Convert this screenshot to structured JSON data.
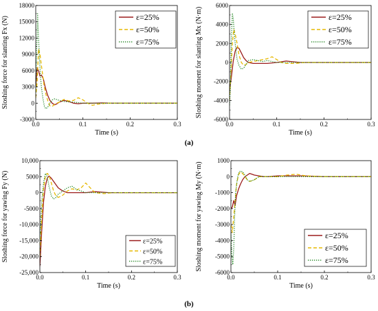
{
  "panel_labels": [
    "(a)",
    "(b)"
  ],
  "colors": {
    "e25": "#9b1b1b",
    "e50": "#e6b800",
    "e75": "#2e8b2e"
  },
  "chart_data": [
    {
      "type": "line",
      "xlabel": "Time (s)",
      "ylabel": "Sloshing force for slanting Fx (N)",
      "xlim": [
        0,
        0.3
      ],
      "ylim": [
        -3000,
        18000
      ],
      "xticks": [
        0,
        0.1,
        0.2,
        0.3
      ],
      "xtick_labels": [
        "0.0",
        "0.1",
        "0.2",
        "0.3"
      ],
      "yticks": [
        -3000,
        0,
        3000,
        6000,
        9000,
        12000,
        15000,
        18000
      ],
      "ytick_labels": [
        "-3000",
        "0",
        "3000",
        "6000",
        "9000",
        "12000",
        "15000",
        "18000"
      ],
      "legend_position": "top-right",
      "series": [
        {
          "name": "ε=25%",
          "color": "#9b1b1b",
          "dash": "solid",
          "x": [
            0,
            0.003,
            0.006,
            0.009,
            0.012,
            0.016,
            0.02,
            0.025,
            0.03,
            0.035,
            0.04,
            0.045,
            0.05,
            0.06,
            0.07,
            0.08,
            0.09,
            0.1,
            0.12,
            0.14,
            0.16,
            0.2,
            0.25,
            0.3
          ],
          "y": [
            3000,
            6500,
            6000,
            5000,
            5200,
            4500,
            3000,
            1500,
            500,
            0,
            -300,
            -100,
            200,
            500,
            300,
            0,
            -100,
            0,
            0,
            50,
            0,
            0,
            0,
            0
          ]
        },
        {
          "name": "ε=50%",
          "color": "#e6b800",
          "dash": "dashed",
          "x": [
            0,
            0.003,
            0.006,
            0.009,
            0.012,
            0.015,
            0.018,
            0.022,
            0.026,
            0.03,
            0.035,
            0.04,
            0.05,
            0.06,
            0.07,
            0.08,
            0.09,
            0.1,
            0.11,
            0.12,
            0.13,
            0.15,
            0.2,
            0.25,
            0.3
          ],
          "y": [
            1000,
            4000,
            10000,
            9000,
            7000,
            5000,
            3000,
            1500,
            300,
            -500,
            -600,
            -200,
            200,
            700,
            400,
            500,
            1000,
            600,
            0,
            -400,
            -200,
            0,
            0,
            0,
            0
          ]
        },
        {
          "name": "ε=75%",
          "color": "#2e8b2e",
          "dash": "dotted",
          "x": [
            0,
            0.002,
            0.004,
            0.006,
            0.008,
            0.01,
            0.012,
            0.015,
            0.018,
            0.021,
            0.025,
            0.03,
            0.035,
            0.04,
            0.05,
            0.06,
            0.08,
            0.1,
            0.12,
            0.15,
            0.2,
            0.3
          ],
          "y": [
            2000,
            10000,
            16500,
            12000,
            8000,
            5000,
            3000,
            1000,
            -500,
            -1000,
            -800,
            0,
            600,
            800,
            500,
            300,
            200,
            0,
            0,
            0,
            0,
            0
          ]
        }
      ]
    },
    {
      "type": "line",
      "xlabel": "Time (s)",
      "ylabel": "Sloshing moment for slanting Mx (N·m)",
      "xlim": [
        0,
        0.3
      ],
      "ylim": [
        -6000,
        6000
      ],
      "xticks": [
        0,
        0.1,
        0.2,
        0.3
      ],
      "xtick_labels": [
        "0.0",
        "0.1",
        "0.2",
        "0.3"
      ],
      "yticks": [
        -6000,
        -4000,
        -2000,
        0,
        2000,
        4000,
        6000
      ],
      "ytick_labels": [
        "-6000",
        "-4000",
        "-2000",
        "0",
        "2000",
        "4000",
        "6000"
      ],
      "legend_position": "top-right",
      "series": [
        {
          "name": "ε=25%",
          "color": "#9b1b1b",
          "dash": "solid",
          "x": [
            0,
            0.004,
            0.008,
            0.012,
            0.016,
            0.02,
            0.025,
            0.03,
            0.035,
            0.04,
            0.05,
            0.06,
            0.08,
            0.1,
            0.12,
            0.13,
            0.15,
            0.2,
            0.25,
            0.3
          ],
          "y": [
            -3000,
            -1500,
            200,
            1200,
            1600,
            1500,
            1000,
            500,
            200,
            0,
            -100,
            -100,
            -100,
            0,
            150,
            100,
            0,
            0,
            0,
            0
          ]
        },
        {
          "name": "ε=50%",
          "color": "#e6b800",
          "dash": "dashed",
          "x": [
            0,
            0.003,
            0.006,
            0.009,
            0.012,
            0.016,
            0.02,
            0.025,
            0.03,
            0.035,
            0.04,
            0.05,
            0.06,
            0.08,
            0.09,
            0.1,
            0.11,
            0.12,
            0.14,
            0.16,
            0.2,
            0.3
          ],
          "y": [
            -4000,
            -1000,
            2000,
            3500,
            3000,
            2000,
            800,
            0,
            -300,
            -200,
            0,
            100,
            200,
            400,
            600,
            300,
            0,
            -100,
            -100,
            0,
            0,
            0
          ]
        },
        {
          "name": "ε=75%",
          "color": "#2e8b2e",
          "dash": "dotted",
          "x": [
            0,
            0.002,
            0.004,
            0.006,
            0.008,
            0.01,
            0.013,
            0.016,
            0.02,
            0.025,
            0.03,
            0.035,
            0.04,
            0.05,
            0.06,
            0.07,
            0.08,
            0.1,
            0.12,
            0.15,
            0.2,
            0.3
          ],
          "y": [
            -4500,
            -2000,
            2500,
            5200,
            4500,
            3000,
            1500,
            300,
            -300,
            -700,
            -600,
            -200,
            200,
            300,
            200,
            100,
            200,
            0,
            0,
            0,
            0,
            0
          ]
        }
      ]
    },
    {
      "type": "line",
      "xlabel": "Time (s)",
      "ylabel": "Sloshing force for yawing Fy (N)",
      "xlim": [
        0,
        0.3
      ],
      "ylim": [
        -25000,
        10000
      ],
      "xticks": [
        0,
        0.1,
        0.2,
        0.3
      ],
      "xtick_labels": [
        "0.0",
        "0.1",
        "0.2",
        "0.3"
      ],
      "yticks": [
        -25000,
        -20000,
        -15000,
        -10000,
        -5000,
        0,
        5000,
        10000
      ],
      "ytick_labels": [
        "-25,000",
        "-20,000",
        "-15,000",
        "-10,000",
        "-5000",
        "0",
        "5000",
        "10,000"
      ],
      "legend_position": "bottom-right",
      "series": [
        {
          "name": "ε=25%",
          "color": "#9b1b1b",
          "dash": "solid",
          "x": [
            0,
            0.004,
            0.008,
            0.012,
            0.016,
            0.02,
            0.025,
            0.03,
            0.035,
            0.04,
            0.05,
            0.06,
            0.07,
            0.08,
            0.09,
            0.1,
            0.12,
            0.13,
            0.15,
            0.2,
            0.25,
            0.3
          ],
          "y": [
            -23000,
            -12000,
            -3000,
            2000,
            4500,
            5200,
            4500,
            3500,
            2500,
            1500,
            500,
            0,
            0,
            0,
            0,
            0,
            300,
            200,
            0,
            0,
            0,
            0
          ]
        },
        {
          "name": "ε=50%",
          "color": "#e6b800",
          "dash": "dashed",
          "x": [
            0,
            0.004,
            0.008,
            0.012,
            0.016,
            0.02,
            0.025,
            0.03,
            0.035,
            0.04,
            0.05,
            0.06,
            0.07,
            0.08,
            0.09,
            0.1,
            0.11,
            0.12,
            0.14,
            0.16,
            0.2,
            0.3
          ],
          "y": [
            -20000,
            -8000,
            1000,
            5000,
            6000,
            5500,
            3000,
            500,
            -1000,
            -1500,
            -800,
            500,
            1200,
            800,
            1500,
            3000,
            1500,
            0,
            -300,
            0,
            0,
            0
          ]
        },
        {
          "name": "ε=75%",
          "color": "#2e8b2e",
          "dash": "dotted",
          "x": [
            0,
            0.004,
            0.008,
            0.012,
            0.016,
            0.02,
            0.025,
            0.03,
            0.035,
            0.04,
            0.05,
            0.06,
            0.07,
            0.08,
            0.1,
            0.12,
            0.15,
            0.2,
            0.3
          ],
          "y": [
            -15000,
            -3000,
            3000,
            6000,
            5000,
            2000,
            -1000,
            -2000,
            -1500,
            -500,
            500,
            1500,
            2000,
            1000,
            0,
            0,
            0,
            0,
            0
          ]
        }
      ]
    },
    {
      "type": "line",
      "xlabel": "Time (s)",
      "ylabel": "Sloshing moment for yawing My (N·m)",
      "xlim": [
        0,
        0.3
      ],
      "ylim": [
        -6000,
        1000
      ],
      "xticks": [
        0,
        0.1,
        0.2,
        0.3
      ],
      "xtick_labels": [
        "0.0",
        "0.1",
        "0.2",
        "0.3"
      ],
      "yticks": [
        -6000,
        -5000,
        -4000,
        -3000,
        -2000,
        -1000,
        0,
        1000
      ],
      "ytick_labels": [
        "-6000",
        "-5000",
        "-4000",
        "-3000",
        "-2000",
        "-1000",
        "0",
        "1000"
      ],
      "legend_position": "bottom-right",
      "series": [
        {
          "name": "ε=25%",
          "color": "#9b1b1b",
          "dash": "solid",
          "x": [
            0,
            0.003,
            0.006,
            0.009,
            0.012,
            0.016,
            0.02,
            0.025,
            0.03,
            0.035,
            0.04,
            0.045,
            0.05,
            0.06,
            0.07,
            0.08,
            0.1,
            0.12,
            0.15,
            0.2,
            0.25,
            0.3
          ],
          "y": [
            -2000,
            -1900,
            -1500,
            -1800,
            -1200,
            -800,
            -500,
            -200,
            0,
            100,
            200,
            150,
            100,
            50,
            0,
            0,
            50,
            50,
            50,
            0,
            0,
            0
          ]
        },
        {
          "name": "ε=50%",
          "color": "#e6b800",
          "dash": "dashed",
          "x": [
            0,
            0.003,
            0.006,
            0.009,
            0.012,
            0.016,
            0.02,
            0.025,
            0.03,
            0.035,
            0.04,
            0.05,
            0.06,
            0.08,
            0.1,
            0.12,
            0.14,
            0.16,
            0.2,
            0.3
          ],
          "y": [
            -3000,
            -3500,
            -2500,
            -1500,
            -500,
            100,
            300,
            200,
            0,
            -200,
            -300,
            -200,
            0,
            0,
            0,
            100,
            150,
            50,
            0,
            0
          ]
        },
        {
          "name": "ε=75%",
          "color": "#2e8b2e",
          "dash": "dotted",
          "x": [
            0,
            0.002,
            0.004,
            0.006,
            0.008,
            0.01,
            0.013,
            0.016,
            0.02,
            0.025,
            0.03,
            0.035,
            0.04,
            0.05,
            0.06,
            0.08,
            0.1,
            0.12,
            0.15,
            0.2,
            0.3
          ],
          "y": [
            -3500,
            -5000,
            -5500,
            -4500,
            -2500,
            -1000,
            -300,
            200,
            350,
            300,
            100,
            -200,
            -300,
            -200,
            0,
            0,
            0,
            0,
            0,
            0,
            0
          ]
        }
      ]
    }
  ]
}
